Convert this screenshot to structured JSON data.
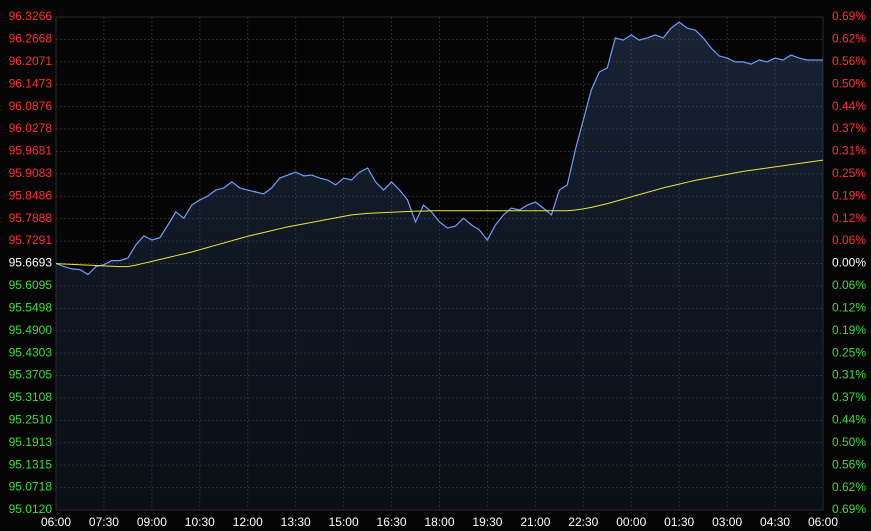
{
  "chart_data": {
    "type": "line",
    "categories": [
      "06:00",
      null,
      null,
      null,
      null,
      null,
      "07:30",
      null,
      null,
      null,
      null,
      null,
      "09:00",
      null,
      null,
      null,
      null,
      null,
      "10:30",
      null,
      null,
      null,
      null,
      null,
      "12:00",
      null,
      null,
      null,
      null,
      null,
      "13:30",
      null,
      null,
      null,
      null,
      null,
      "15:00",
      null,
      null,
      null,
      null,
      null,
      "16:30",
      null,
      null,
      null,
      null,
      null,
      "18:00",
      null,
      null,
      null,
      null,
      null,
      "19:30",
      null,
      null,
      null,
      null,
      null,
      "21:00",
      null,
      null,
      null,
      null,
      null,
      "22:30",
      null,
      null,
      null,
      null,
      null,
      "00:00",
      null,
      null,
      null,
      null,
      null,
      "01:30",
      null,
      null,
      null,
      null,
      null,
      "03:00",
      null,
      null,
      null,
      null,
      null,
      "04:30",
      null,
      null,
      null,
      null,
      null,
      "06:00"
    ],
    "series": [
      {
        "color": "#6f9dff",
        "values": [
          95.6693,
          95.661,
          95.655,
          95.653,
          95.64,
          95.661,
          95.666,
          95.677,
          95.677,
          95.684,
          95.719,
          95.743,
          95.732,
          95.738,
          95.772,
          95.807,
          95.79,
          95.825,
          95.839,
          95.849,
          95.865,
          95.871,
          95.887,
          95.871,
          95.865,
          95.86,
          95.855,
          95.871,
          95.897,
          95.905,
          95.913,
          95.903,
          95.905,
          95.897,
          95.892,
          95.879,
          95.897,
          95.892,
          95.913,
          95.924,
          95.887,
          95.865,
          95.887,
          95.865,
          95.839,
          95.78,
          95.825,
          95.807,
          95.78,
          95.764,
          95.769,
          95.79,
          95.772,
          95.759,
          95.732,
          95.772,
          95.799,
          95.817,
          95.812,
          95.825,
          95.833,
          95.817,
          95.799,
          95.865,
          95.879,
          95.972,
          96.052,
          96.132,
          96.18,
          96.191,
          96.271,
          96.265,
          96.279,
          96.265,
          96.271,
          96.279,
          96.271,
          96.297,
          96.313,
          96.297,
          96.292,
          96.271,
          96.244,
          96.223,
          96.217,
          96.207,
          96.207,
          96.201,
          96.212,
          96.207,
          96.217,
          96.212,
          96.225,
          96.217,
          96.212,
          96.212,
          96.212
        ]
      },
      {
        "color": "#e6e63c",
        "values": [
          95.669,
          95.668,
          95.667,
          95.666,
          95.665,
          95.664,
          95.663,
          95.662,
          95.661,
          95.661,
          95.665,
          95.67,
          95.675,
          95.68,
          95.685,
          95.69,
          95.695,
          95.7,
          95.706,
          95.712,
          95.718,
          95.724,
          95.73,
          95.736,
          95.742,
          95.747,
          95.752,
          95.757,
          95.762,
          95.767,
          95.771,
          95.775,
          95.779,
          95.783,
          95.787,
          95.791,
          95.795,
          95.799,
          95.801,
          95.803,
          95.804,
          95.805,
          95.806,
          95.807,
          95.808,
          95.809,
          95.809,
          95.81,
          95.81,
          95.81,
          95.81,
          95.81,
          95.81,
          95.81,
          95.81,
          95.81,
          95.81,
          95.81,
          95.81,
          95.81,
          95.81,
          95.81,
          95.81,
          95.81,
          95.81,
          95.812,
          95.815,
          95.819,
          95.824,
          95.829,
          95.835,
          95.841,
          95.847,
          95.853,
          95.859,
          95.865,
          95.871,
          95.876,
          95.881,
          95.886,
          95.891,
          95.895,
          95.899,
          95.903,
          95.907,
          95.911,
          95.915,
          95.918,
          95.921,
          95.924,
          95.927,
          95.93,
          95.933,
          95.936,
          95.939,
          95.942,
          95.945
        ]
      }
    ],
    "ylim": [
      95.012,
      96.3266
    ],
    "yticks": [
      96.3266,
      96.2668,
      96.2071,
      96.1473,
      96.0876,
      96.0278,
      95.9681,
      95.9083,
      95.8486,
      95.7888,
      95.7291,
      95.6693,
      95.6095,
      95.5498,
      {
        "value": 95.49,
        "label": "95.4900"
      },
      95.4303,
      95.3705,
      95.3108,
      {
        "value": 95.251,
        "label": "95.2510"
      },
      95.1913,
      95.1315,
      95.0718,
      {
        "value": 95.012,
        "label": "95.0120"
      }
    ],
    "y2lim": [
      -0.687,
      0.687
    ],
    "y2ticks": [
      {
        "value": 0.687,
        "label": "0.69%"
      },
      {
        "value": 0.6246,
        "label": "0.62%"
      },
      {
        "value": 0.5621,
        "label": "0.56%"
      },
      {
        "value": 0.4996,
        "label": "0.50%"
      },
      {
        "value": 0.4372,
        "label": "0.44%"
      },
      {
        "value": 0.3747,
        "label": "0.37%"
      },
      {
        "value": 0.3123,
        "label": "0.31%"
      },
      {
        "value": 0.2498,
        "label": "0.25%"
      },
      {
        "value": 0.1874,
        "label": "0.19%"
      },
      {
        "value": 0.1249,
        "label": "0.12%"
      },
      {
        "value": 0.0625,
        "label": "0.06%"
      },
      {
        "value": 0,
        "label": "0.00%"
      },
      {
        "value": -0.0625,
        "label": "0.06%"
      },
      {
        "value": -0.1249,
        "label": "0.12%"
      },
      {
        "value": -0.1874,
        "label": "0.19%"
      },
      {
        "value": -0.2498,
        "label": "0.25%"
      },
      {
        "value": -0.3123,
        "label": "0.31%"
      },
      {
        "value": -0.3747,
        "label": "0.37%"
      },
      {
        "value": -0.4372,
        "label": "0.44%"
      },
      {
        "value": -0.4996,
        "label": "0.50%"
      },
      {
        "value": -0.5621,
        "label": "0.56%"
      },
      {
        "value": -0.6246,
        "label": "0.62%"
      },
      {
        "value": -0.687,
        "label": "0.69%"
      }
    ],
    "grid": true,
    "tick_colors": {
      "up": "#ff3030",
      "down": "#3ddc3d",
      "flat": "#ffffff"
    }
  }
}
